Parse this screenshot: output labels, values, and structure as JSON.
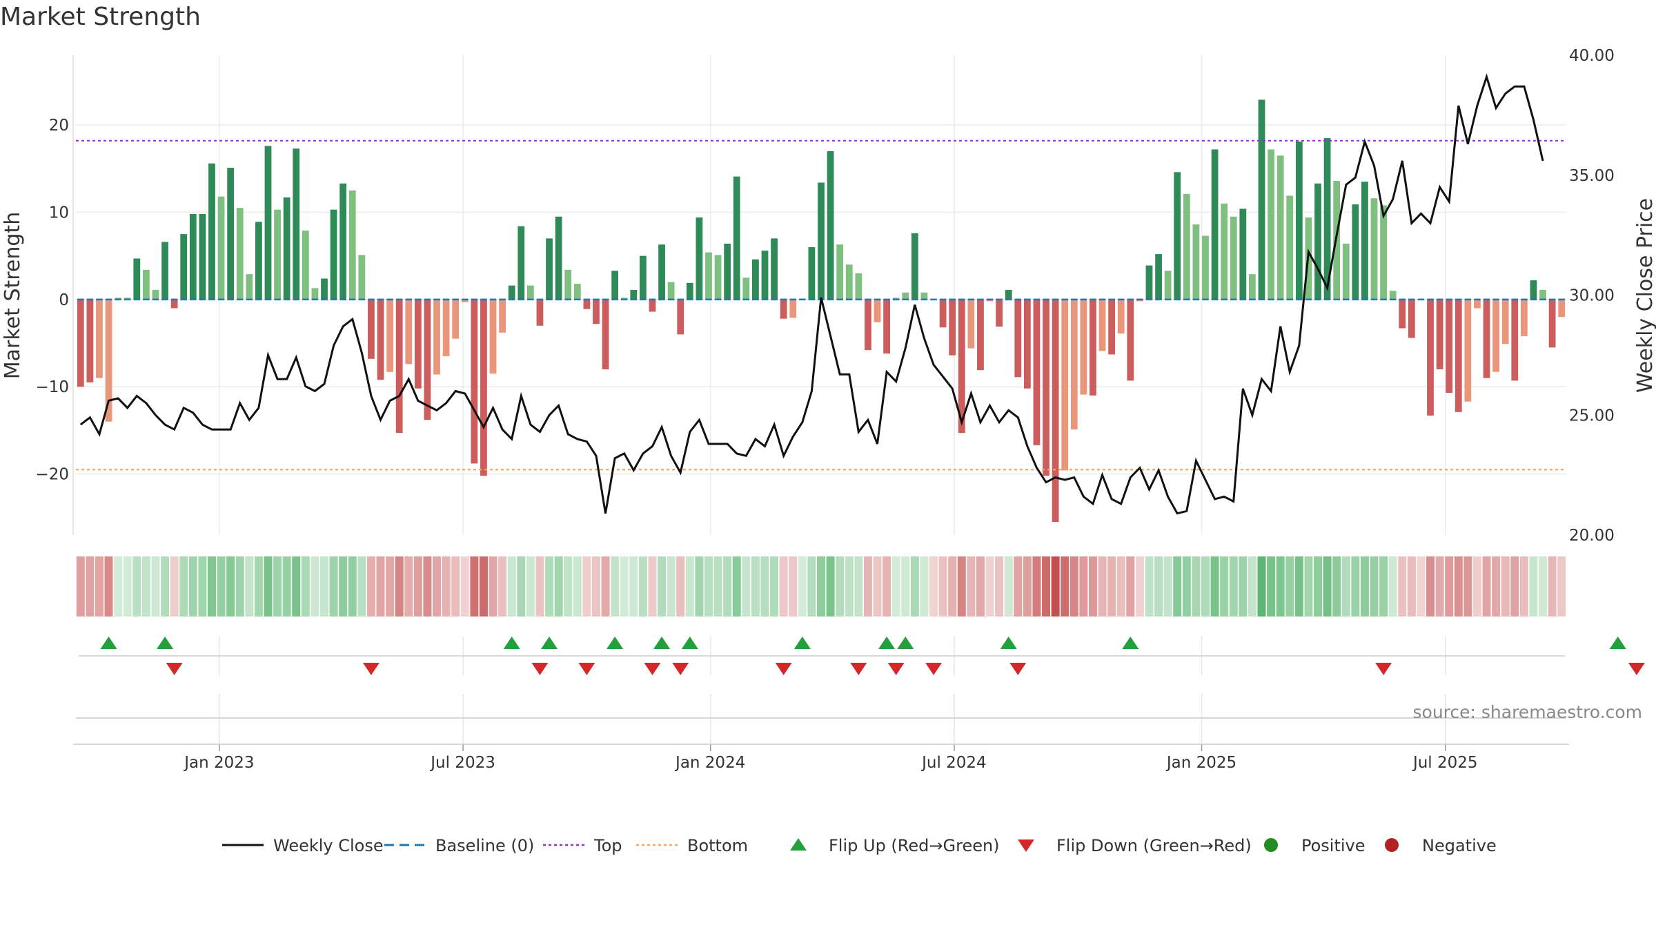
{
  "title": "Market Strength",
  "source_text": "source: sharemaestro.com",
  "colors": {
    "strong_pos": "#2e8b57",
    "weak_pos": "#7fbf7f",
    "strong_neg": "#cd5c5c",
    "weak_neg": "#e9967a",
    "close_line": "#111111",
    "baseline": "#1f77b4",
    "top": "#9932cc",
    "bottom": "#f4a460",
    "flip_up": "#22a13b",
    "flip_down": "#d62728",
    "positive": "#228b22",
    "negative": "#b22222"
  },
  "chart_data": {
    "type": "bar",
    "title": "Market Strength",
    "ylabel_left": "Market Strength",
    "ylabel_right": "Weekly Close Price",
    "ylim_left": [
      -27,
      28
    ],
    "ylim_right": [
      20,
      40
    ],
    "yticks_left": [
      20,
      10,
      0,
      -10,
      -20
    ],
    "yticks_left_labels": [
      "20",
      "10",
      "0",
      "−10",
      "−20"
    ],
    "yticks_right": [
      40,
      35,
      30,
      25,
      20
    ],
    "yticks_right_labels": [
      "40.00",
      "35.00",
      "30.00",
      "25.00",
      "20.00"
    ],
    "x_tick_labels": [
      "Jan 2023",
      "Jul 2023",
      "Jan 2024",
      "Jul 2024",
      "Jan 2025",
      "Jul 2025"
    ],
    "x_tick_weeks": [
      15.3,
      41.3,
      67.7,
      93.7,
      120.1,
      146.1
    ],
    "top_line": 18.2,
    "bottom_line": -19.5,
    "baseline": 0,
    "legend": [
      {
        "label": "Weekly Close",
        "kind": "line"
      },
      {
        "label": "Baseline (0)",
        "kind": "dash"
      },
      {
        "label": "Top",
        "kind": "dotted-purple"
      },
      {
        "label": "Bottom",
        "kind": "dotted-orange"
      },
      {
        "label": "Flip Up (Red→Green)",
        "kind": "tri-up"
      },
      {
        "label": "Flip Down (Green→Red)",
        "kind": "tri-down"
      },
      {
        "label": "Positive",
        "kind": "dot-pos"
      },
      {
        "label": "Negative",
        "kind": "dot-neg"
      }
    ],
    "strength": [
      -10,
      -9.5,
      -9,
      -14,
      0.2,
      0.2,
      4.7,
      3.4,
      1.1,
      6.6,
      -1,
      7.5,
      9.8,
      9.8,
      15.6,
      11.8,
      15.1,
      10.5,
      2.9,
      8.9,
      17.6,
      10.3,
      11.7,
      17.3,
      7.9,
      1.3,
      2.4,
      10.3,
      13.3,
      12.5,
      5.1,
      -6.8,
      -9.2,
      -8.3,
      -15.3,
      -7.4,
      -10.2,
      -13.8,
      -8.6,
      -6.5,
      -4.5,
      -0.3,
      -18.8,
      -20.2,
      -8.5,
      -3.8,
      1.6,
      8.4,
      1.6,
      -3,
      7.0,
      9.5,
      3.4,
      1.8,
      -1.1,
      -2.8,
      -8,
      3.3,
      0.2,
      1.1,
      5,
      -1.4,
      6.3,
      2,
      -4,
      1.9,
      9.4,
      5.4,
      5.1,
      6.4,
      14.1,
      2.5,
      4.6,
      5.6,
      7,
      -2.2,
      -2.1,
      0.1,
      6,
      13.4,
      17,
      6.3,
      4,
      3,
      -5.8,
      -2.6,
      -6.2,
      0.2,
      0.8,
      7.6,
      0.8,
      -0.1,
      -3.2,
      -6.4,
      -15.3,
      -5.6,
      -8.1,
      -0.2,
      -3.1,
      1.1,
      -8.9,
      -10.2,
      -16.7,
      -20.2,
      -25.5,
      -19.6,
      -14.9,
      -10.9,
      -11,
      -5.9,
      -6.3,
      -3.9,
      -9.3,
      -0.2,
      3.9,
      5.2,
      3.3,
      14.6,
      12.1,
      8.6,
      7.3,
      17.2,
      11,
      9.5,
      10.4,
      2.9,
      22.9,
      17.2,
      16.5,
      11.9,
      18.1,
      9.4,
      13.3,
      18.5,
      13.6,
      6.4,
      10.9,
      13.5,
      11.6,
      10.8,
      1,
      -3.3,
      -4.4,
      -0.1,
      -13.3,
      -8,
      -10.7,
      -12.9,
      -11.7,
      -1,
      -9,
      -8.3,
      -5.1,
      -9.3,
      -4.2,
      2.2,
      1.1,
      -5.5,
      -2
    ],
    "strength_bar_style": [
      "sn",
      "sn",
      "wn",
      "wn",
      "wp",
      "wp",
      "sp",
      "wp",
      "wp",
      "sp",
      "sn",
      "sp",
      "sp",
      "sp",
      "sp",
      "wp",
      "sp",
      "wp",
      "wp",
      "sp",
      "sp",
      "wp",
      "sp",
      "sp",
      "wp",
      "wp",
      "sp",
      "sp",
      "sp",
      "wp",
      "wp",
      "sn",
      "sn",
      "wn",
      "sn",
      "wn",
      "sn",
      "sn",
      "wn",
      "wn",
      "wn",
      "wn",
      "sn",
      "sn",
      "wn",
      "wn",
      "sp",
      "sp",
      "wp",
      "sn",
      "sp",
      "sp",
      "wp",
      "wp",
      "sn",
      "sn",
      "sn",
      "sp",
      "wp",
      "sp",
      "sp",
      "sn",
      "sp",
      "wp",
      "sn",
      "sp",
      "sp",
      "wp",
      "wp",
      "sp",
      "sp",
      "wp",
      "sp",
      "sp",
      "sp",
      "sn",
      "wn",
      "wp",
      "sp",
      "sp",
      "sp",
      "wp",
      "wp",
      "wp",
      "sn",
      "wn",
      "sn",
      "wp",
      "wp",
      "sp",
      "wp",
      "wn",
      "sn",
      "sn",
      "sn",
      "wn",
      "sn",
      "wn",
      "sn",
      "sp",
      "sn",
      "sn",
      "sn",
      "sn",
      "sn",
      "wn",
      "wn",
      "wn",
      "sn",
      "wn",
      "sn",
      "wn",
      "sn",
      "wn",
      "sp",
      "sp",
      "wp",
      "sp",
      "wp",
      "wp",
      "wp",
      "sp",
      "wp",
      "wp",
      "sp",
      "wp",
      "sp",
      "wp",
      "wp",
      "wp",
      "sp",
      "wp",
      "sp",
      "sp",
      "wp",
      "wp",
      "sp",
      "sp",
      "wp",
      "wp",
      "wp",
      "sn",
      "sn",
      "wn",
      "sn",
      "sn",
      "sn",
      "sn",
      "wn",
      "wn",
      "sn",
      "wn",
      "wn",
      "sn",
      "wn",
      "sp",
      "wp",
      "sn",
      "wn"
    ],
    "weekly_close": [
      24.6,
      24.9,
      24.2,
      25.6,
      25.7,
      25.3,
      25.8,
      25.5,
      25.0,
      24.6,
      24.4,
      25.3,
      25.1,
      24.6,
      24.4,
      24.4,
      24.4,
      25.5,
      24.8,
      25.3,
      27.5,
      26.5,
      26.5,
      27.4,
      26.2,
      26.0,
      26.3,
      27.9,
      28.7,
      29.0,
      27.6,
      25.8,
      24.8,
      25.6,
      25.8,
      26.5,
      25.6,
      25.4,
      25.2,
      25.5,
      26.0,
      25.9,
      25.2,
      24.5,
      25.3,
      24.4,
      24.0,
      25.8,
      24.6,
      24.3,
      25.0,
      25.4,
      24.2,
      24.0,
      23.9,
      23.3,
      20.9,
      23.2,
      23.4,
      22.7,
      23.4,
      23.7,
      24.5,
      23.3,
      22.6,
      24.3,
      24.8,
      23.8,
      23.8,
      23.8,
      23.4,
      23.3,
      24.0,
      23.7,
      24.6,
      23.3,
      24.1,
      24.7,
      26.0,
      29.9,
      28.3,
      26.7,
      26.7,
      24.3,
      24.8,
      23.8,
      26.8,
      26.4,
      27.8,
      29.6,
      28.2,
      27.1,
      26.6,
      26.1,
      24.7,
      25.9,
      24.7,
      25.4,
      24.7,
      25.2,
      24.9,
      23.7,
      22.8,
      22.2,
      22.4,
      22.3,
      22.4,
      21.6,
      21.3,
      22.5,
      21.5,
      21.3,
      22.4,
      22.8,
      21.9,
      22.7,
      21.6,
      20.9,
      21.0,
      23.1,
      22.3,
      21.5,
      21.6,
      21.4,
      26.1,
      25.0,
      26.5,
      26.0,
      28.7,
      26.8,
      27.9,
      31.8,
      31.1,
      30.3,
      32.5,
      34.6,
      34.9,
      36.4,
      35.4,
      33.3,
      34.0,
      35.6,
      33.0,
      33.4,
      33.0,
      34.5,
      33.9,
      37.9,
      36.3,
      37.9,
      39.1,
      37.8,
      38.4,
      38.7,
      38.7,
      37.3,
      35.6
    ],
    "heat_strength_order": "same as strength",
    "flip_up_weeks": [
      3,
      9,
      46,
      50,
      57,
      62,
      65,
      77,
      86,
      88,
      99,
      112,
      164
    ],
    "flip_down_weeks": [
      10,
      31,
      49,
      54,
      61,
      64,
      75,
      83,
      87,
      91,
      100,
      139,
      166
    ]
  }
}
